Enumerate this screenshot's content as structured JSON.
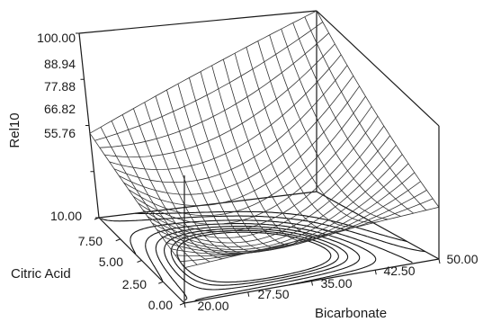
{
  "chart_data": {
    "type": "surface-3d",
    "title": "",
    "xlabel": "Bicarbonate",
    "ylabel": "Citric Acid",
    "zlabel": "Rel10",
    "x_ticks": [
      "20.00",
      "27.50",
      "35.00",
      "42.50",
      "50.00"
    ],
    "y_ticks": [
      "0.00",
      "2.50",
      "5.00",
      "7.50",
      "10.00"
    ],
    "z_ticks": [
      "55.76",
      "66.82",
      "77.88",
      "88.94",
      "100.00"
    ],
    "xlim": [
      20,
      50
    ],
    "ylim": [
      0,
      10
    ],
    "zlim": [
      55.76,
      100
    ],
    "surface_corners": [
      {
        "bicarbonate": 20,
        "citric_acid": 0,
        "rel10": 68
      },
      {
        "bicarbonate": 50,
        "citric_acid": 0,
        "rel10": 73
      },
      {
        "bicarbonate": 20,
        "citric_acid": 10,
        "rel10": 76
      },
      {
        "bicarbonate": 50,
        "citric_acid": 10,
        "rel10": 100
      }
    ],
    "surface_minimum": {
      "bicarbonate": 40,
      "citric_acid": 4,
      "rel10": 64
    },
    "grid_lines": 20,
    "contour_projection": true,
    "colors": {
      "mesh": "#333333",
      "axes": "#1a1a1a",
      "contours": "#111111"
    }
  }
}
